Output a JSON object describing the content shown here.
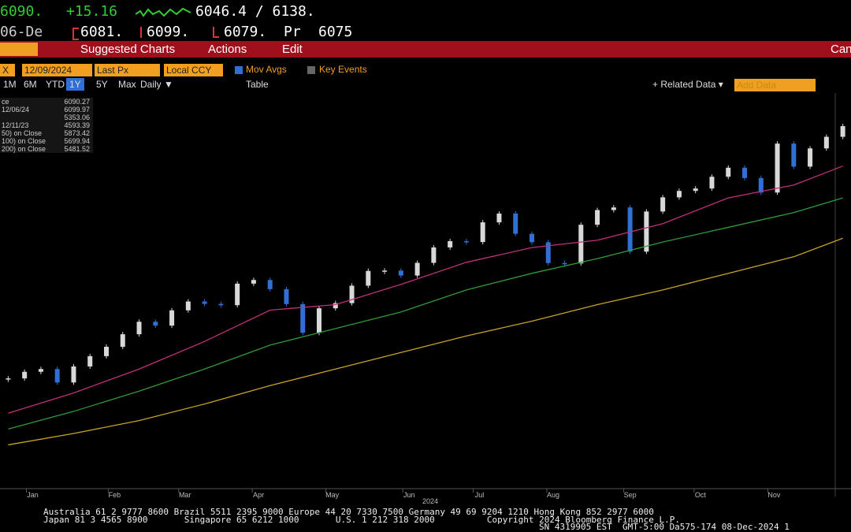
{
  "header": {
    "last": "6090.",
    "change": "+15.16",
    "range": "6046.4 / 6138.",
    "date": "06-De",
    "open": "6081.",
    "high": "6099.",
    "low": "6079.",
    "prev_label": "Pr",
    "prev": "6075"
  },
  "menu": {
    "suggested": "Suggested Charts",
    "actions": "Actions",
    "edit": "Edit",
    "cancel": "Can"
  },
  "toolbar": {
    "ticker": "X",
    "date": "12/09/2024",
    "field": "Last Px",
    "currency": "Local CCY",
    "mov_avgs": "Mov Avgs",
    "key_events": "Key Events"
  },
  "periods": [
    "1M",
    "6M",
    "YTD",
    "1Y",
    "5Y",
    "Max"
  ],
  "active_period": 3,
  "frequency": "Daily ▼",
  "table": "Table",
  "related": "+ Related Data ▾",
  "add_data": "Add Data",
  "legend": {
    "rows": [
      {
        "label": "ce",
        "value": "6090.27"
      },
      {
        "label": "12/06/24",
        "value": "6099.97"
      },
      {
        "value": "5353.06"
      },
      {
        "label": "12/11/23",
        "value": "4593.39"
      }
    ]
  },
  "chart_data": {
    "type": "candlestick",
    "categories": [
      null,
      null,
      null,
      null,
      null,
      null,
      null,
      null,
      null,
      null,
      null,
      null,
      null,
      null,
      null,
      null,
      null,
      null,
      null,
      null,
      null,
      null,
      null,
      null,
      null,
      null,
      null,
      null,
      null,
      null,
      null,
      null,
      null,
      null,
      null,
      null,
      null,
      null,
      null,
      null,
      null,
      null,
      null,
      null,
      null,
      null,
      null,
      null,
      null,
      null,
      null,
      null
    ],
    "values": [
      4719,
      4755,
      4770,
      4697,
      4784,
      4840,
      4891,
      4959,
      5027,
      5006,
      5089,
      5137,
      5124,
      5117,
      5234,
      5254,
      5204,
      5123,
      4967,
      5100,
      5128,
      5223,
      5303,
      5305,
      5278,
      5347,
      5431,
      5465,
      5460,
      5567,
      5615,
      5505,
      5459,
      5346,
      5344,
      5554,
      5634,
      5648,
      5408,
      5626,
      5703,
      5738,
      5751,
      5815,
      5864,
      5808,
      5729,
      5995,
      5870,
      5969,
      6032,
      6090
    ],
    "up_color": "#d8d8d8",
    "down_color": "#2f6fd6",
    "ylim": [
      4120,
      6270
    ],
    "xticks": [
      {
        "value": 1.5,
        "label": "Jan"
      },
      {
        "value": 6.5,
        "label": "Feb"
      },
      {
        "value": 10.8,
        "label": "Mar"
      },
      {
        "value": 15.3,
        "label": "Apr"
      },
      {
        "value": 19.8,
        "label": "May"
      },
      {
        "value": 24.5,
        "label": "Jun"
      },
      {
        "value": 28.8,
        "label": "Jul"
      },
      {
        "value": 33.3,
        "label": "Aug"
      },
      {
        "value": 38,
        "label": "Sep"
      },
      {
        "value": 42.3,
        "label": "Oct"
      },
      {
        "value": 46.8,
        "label": "Nov"
      }
    ],
    "x_title": "2024",
    "series": [
      {
        "name": "50)  on Close",
        "legend_value": "5873.42",
        "color": "#c0307a",
        "x": [
          0,
          4,
          8,
          12,
          16,
          20,
          24,
          28,
          32,
          36,
          40,
          44,
          48,
          51
        ],
        "values": [
          4530,
          4640,
          4770,
          4920,
          5090,
          5120,
          5230,
          5350,
          5430,
          5470,
          5560,
          5700,
          5770,
          5873
        ]
      },
      {
        "name": "100)  on Close",
        "legend_value": "5699.94",
        "color": "#2f9a3a",
        "x": [
          0,
          4,
          8,
          12,
          16,
          20,
          24,
          28,
          32,
          36,
          40,
          44,
          48,
          51
        ],
        "values": [
          4444,
          4540,
          4650,
          4770,
          4900,
          4990,
          5080,
          5200,
          5290,
          5370,
          5460,
          5540,
          5620,
          5700
        ]
      },
      {
        "name": "200)  on Close",
        "legend_value": "5481.52",
        "color": "#c9a227",
        "x": [
          0,
          4,
          8,
          12,
          16,
          20,
          24,
          28,
          32,
          36,
          40,
          44,
          48,
          51
        ],
        "values": [
          4358,
          4420,
          4490,
          4580,
          4680,
          4770,
          4860,
          4950,
          5030,
          5120,
          5200,
          5290,
          5380,
          5481
        ]
      }
    ]
  },
  "footer": {
    "line1": "Australia 61 2 9777 8600 Brazil 5511 2395 9000 Europe 44 20 7330 7500 Germany 49 69 9204 1210 Hong Kong 852 2977 6000",
    "line2": "Japan 81 3 4565 8900       Singapore 65 6212 1000       U.S. 1 212 318 2000          Copyright 2024 Bloomberg Finance L.P.",
    "line3": "SN 4319905 EST  GMT-5:00 Da575-174 08-Dec-2024 1"
  }
}
